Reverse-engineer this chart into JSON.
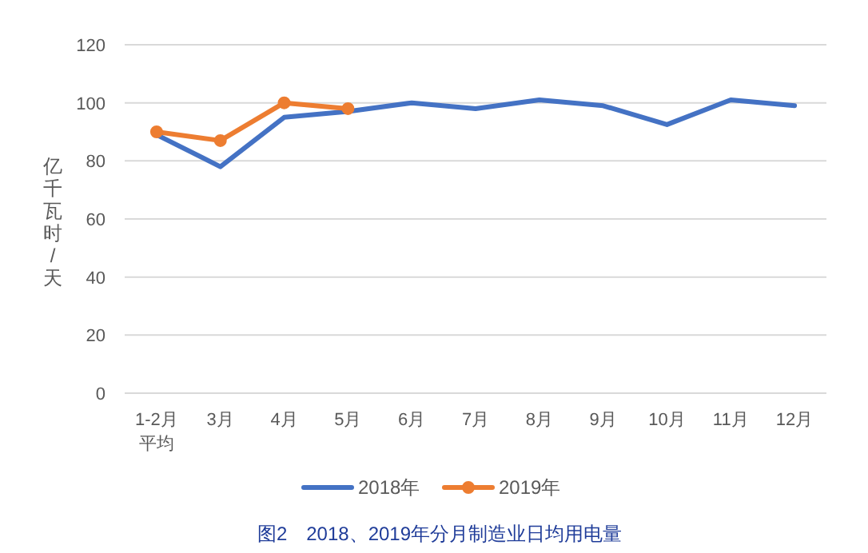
{
  "chart_data": {
    "type": "line",
    "title": "图2　2018、2019年分月制造业日均用电量",
    "ylabel": "亿千瓦时/天",
    "categories": [
      "1-2月平均",
      "3月",
      "4月",
      "5月",
      "6月",
      "7月",
      "8月",
      "9月",
      "10月",
      "11月",
      "12月"
    ],
    "series": [
      {
        "name": "2018年",
        "color": "#4472c4",
        "marker": "none",
        "values": [
          89,
          78,
          95,
          97,
          100,
          98,
          101,
          99,
          92.5,
          101,
          99
        ]
      },
      {
        "name": "2019年",
        "color": "#ed7d31",
        "marker": "circle",
        "values": [
          90,
          87,
          100,
          98,
          null,
          null,
          null,
          null,
          null,
          null,
          null
        ]
      }
    ],
    "ylim": [
      0,
      120
    ],
    "yticks": [
      0,
      20,
      40,
      60,
      80,
      100,
      120
    ],
    "grid": "y",
    "legend": "bottom"
  }
}
